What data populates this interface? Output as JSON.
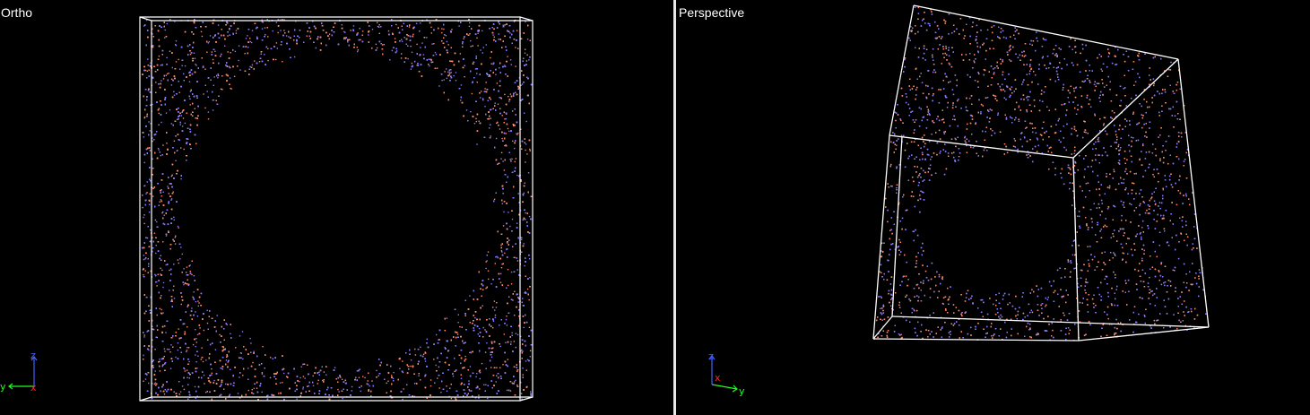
{
  "viewports": {
    "ortho": {
      "label": "Ortho"
    },
    "perspective": {
      "label": "Perspective"
    }
  },
  "axes": {
    "x_label": "x",
    "y_label": "y",
    "z_label": "z",
    "x_color": "#ff2020",
    "y_color": "#20ff20",
    "z_color": "#4060ff"
  },
  "colors": {
    "background": "#000000",
    "box_edges": "#ffffff",
    "particle_a": "#8a7cff",
    "particle_b": "#ff8a6a",
    "divider": "#e8e8e8"
  }
}
